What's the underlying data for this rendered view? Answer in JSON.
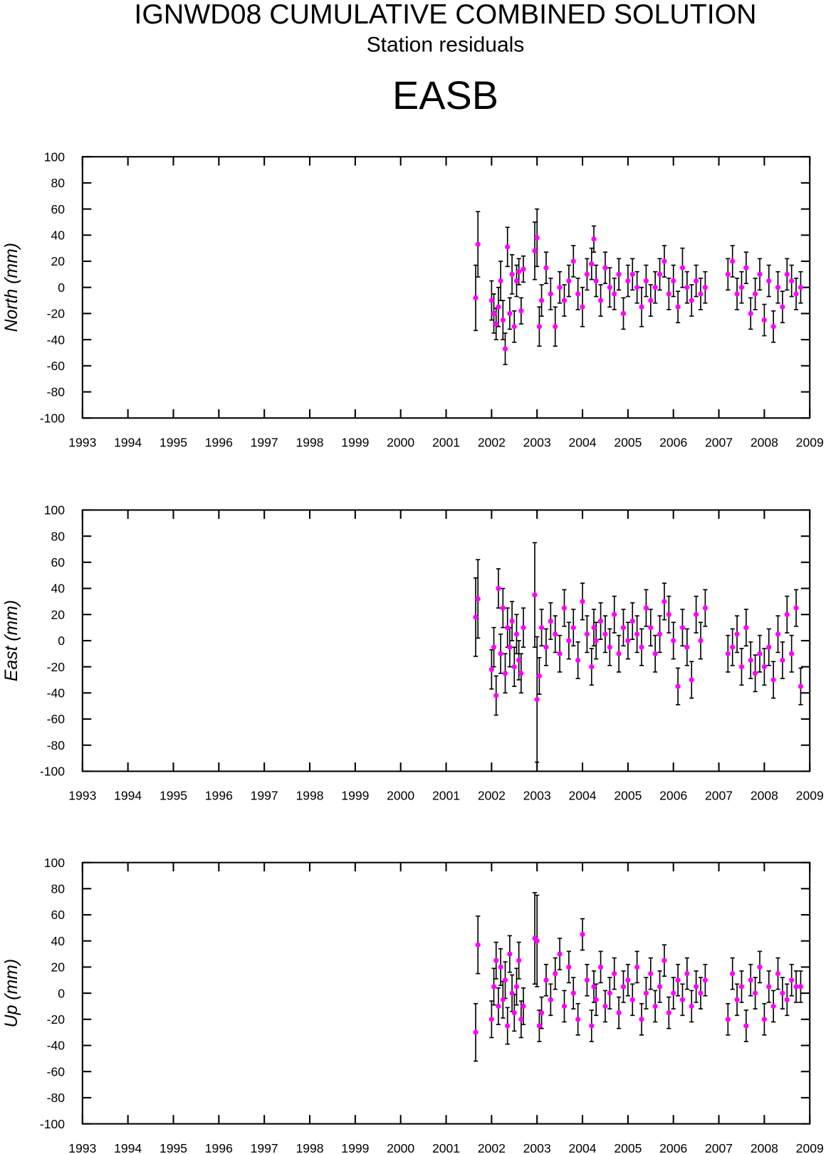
{
  "header": {
    "title": "IGNWD08 CUMULATIVE COMBINED SOLUTION",
    "subtitle": "Station residuals",
    "station": "EASB"
  },
  "chart_data": [
    {
      "type": "scatter",
      "ylabel": "North (mm)",
      "color": "#ff00ff",
      "error_color": "#000000",
      "xlim": [
        1993,
        2009
      ],
      "xticks": [
        1993,
        1994,
        1995,
        1996,
        1997,
        1998,
        1999,
        2000,
        2001,
        2002,
        2003,
        2004,
        2005,
        2006,
        2007,
        2008,
        2009
      ],
      "ylim": [
        -100,
        100
      ],
      "yticks": [
        -100,
        -80,
        -60,
        -40,
        -20,
        0,
        20,
        40,
        60,
        80,
        100
      ],
      "x": [
        2001.65,
        2001.7,
        2002.0,
        2002.05,
        2002.1,
        2002.15,
        2002.2,
        2002.25,
        2002.3,
        2002.35,
        2002.4,
        2002.45,
        2002.5,
        2002.55,
        2002.6,
        2002.65,
        2002.7,
        2002.95,
        2003.0,
        2003.05,
        2003.1,
        2003.2,
        2003.3,
        2003.4,
        2003.5,
        2003.6,
        2003.7,
        2003.8,
        2003.9,
        2004.0,
        2004.1,
        2004.2,
        2004.25,
        2004.3,
        2004.4,
        2004.5,
        2004.6,
        2004.7,
        2004.8,
        2004.9,
        2005.0,
        2005.1,
        2005.2,
        2005.3,
        2005.4,
        2005.5,
        2005.6,
        2005.7,
        2005.8,
        2005.9,
        2006.0,
        2006.1,
        2006.2,
        2006.3,
        2006.4,
        2006.5,
        2006.6,
        2006.7,
        2007.2,
        2007.3,
        2007.4,
        2007.5,
        2007.6,
        2007.7,
        2007.8,
        2007.9,
        2008.0,
        2008.1,
        2008.2,
        2008.3,
        2008.4,
        2008.5,
        2008.6,
        2008.7,
        2008.8
      ],
      "values": [
        -8,
        33,
        -10,
        -20,
        -28,
        -15,
        5,
        -25,
        -47,
        31,
        -20,
        10,
        -30,
        5,
        12,
        -18,
        14,
        28,
        38,
        -30,
        -10,
        15,
        -5,
        -30,
        0,
        -10,
        5,
        20,
        -5,
        -15,
        10,
        18,
        37,
        5,
        -10,
        15,
        0,
        -5,
        10,
        -20,
        5,
        10,
        0,
        -15,
        5,
        -10,
        0,
        10,
        20,
        -5,
        5,
        -15,
        15,
        0,
        -10,
        5,
        -5,
        0,
        10,
        20,
        -5,
        0,
        15,
        -20,
        -5,
        10,
        -25,
        5,
        -30,
        0,
        -15,
        10,
        5,
        -5,
        0
      ],
      "errors": [
        25,
        25,
        15,
        15,
        12,
        15,
        15,
        15,
        12,
        15,
        12,
        15,
        12,
        12,
        10,
        10,
        10,
        22,
        22,
        15,
        12,
        12,
        12,
        15,
        12,
        12,
        12,
        12,
        12,
        15,
        12,
        12,
        10,
        12,
        12,
        12,
        15,
        12,
        12,
        12,
        12,
        12,
        12,
        15,
        12,
        12,
        12,
        12,
        12,
        12,
        12,
        12,
        15,
        12,
        12,
        12,
        12,
        12,
        12,
        12,
        12,
        12,
        12,
        12,
        12,
        12,
        12,
        12,
        12,
        12,
        12,
        12,
        12,
        12,
        12
      ]
    },
    {
      "type": "scatter",
      "ylabel": "East (mm)",
      "color": "#ff00ff",
      "error_color": "#000000",
      "xlim": [
        1993,
        2009
      ],
      "xticks": [
        1993,
        1994,
        1995,
        1996,
        1997,
        1998,
        1999,
        2000,
        2001,
        2002,
        2003,
        2004,
        2005,
        2006,
        2007,
        2008,
        2009
      ],
      "ylim": [
        -100,
        100
      ],
      "yticks": [
        -100,
        -80,
        -60,
        -40,
        -20,
        0,
        20,
        40,
        60,
        80,
        100
      ],
      "x": [
        2001.65,
        2001.7,
        2002.0,
        2002.05,
        2002.1,
        2002.15,
        2002.2,
        2002.25,
        2002.3,
        2002.35,
        2002.4,
        2002.45,
        2002.5,
        2002.55,
        2002.6,
        2002.65,
        2002.7,
        2002.95,
        2003.0,
        2003.05,
        2003.1,
        2003.2,
        2003.3,
        2003.4,
        2003.5,
        2003.6,
        2003.7,
        2003.8,
        2003.9,
        2004.0,
        2004.1,
        2004.2,
        2004.25,
        2004.3,
        2004.4,
        2004.5,
        2004.6,
        2004.7,
        2004.8,
        2004.9,
        2005.0,
        2005.1,
        2005.2,
        2005.3,
        2005.4,
        2005.5,
        2005.6,
        2005.7,
        2005.8,
        2005.9,
        2006.0,
        2006.1,
        2006.2,
        2006.3,
        2006.4,
        2006.5,
        2006.6,
        2006.7,
        2007.2,
        2007.3,
        2007.4,
        2007.5,
        2007.6,
        2007.7,
        2007.8,
        2007.9,
        2008.0,
        2008.1,
        2008.2,
        2008.3,
        2008.4,
        2008.5,
        2008.6,
        2008.7,
        2008.8
      ],
      "values": [
        18,
        32,
        -22,
        -5,
        -42,
        40,
        -10,
        25,
        -25,
        10,
        -5,
        15,
        -20,
        5,
        -15,
        -25,
        10,
        35,
        -45,
        -27,
        10,
        -5,
        15,
        5,
        -10,
        25,
        0,
        10,
        -15,
        30,
        5,
        -20,
        10,
        0,
        15,
        5,
        -5,
        20,
        -10,
        10,
        0,
        15,
        5,
        -5,
        25,
        10,
        -10,
        5,
        30,
        20,
        0,
        -35,
        10,
        -5,
        -30,
        20,
        0,
        25,
        -10,
        -5,
        5,
        -20,
        10,
        -15,
        -25,
        -10,
        -20,
        -5,
        -30,
        5,
        -15,
        20,
        -10,
        25,
        -35
      ],
      "errors": [
        30,
        30,
        15,
        15,
        15,
        15,
        15,
        15,
        15,
        15,
        15,
        15,
        15,
        15,
        15,
        15,
        15,
        40,
        48,
        14,
        14,
        14,
        14,
        14,
        14,
        14,
        14,
        14,
        14,
        14,
        14,
        14,
        14,
        14,
        14,
        14,
        14,
        14,
        14,
        14,
        14,
        14,
        14,
        14,
        14,
        14,
        14,
        14,
        14,
        14,
        14,
        14,
        14,
        14,
        14,
        14,
        14,
        14,
        14,
        14,
        14,
        14,
        14,
        14,
        14,
        14,
        14,
        14,
        14,
        14,
        14,
        14,
        14,
        14,
        14
      ]
    },
    {
      "type": "scatter",
      "ylabel": "Up (mm)",
      "color": "#ff00ff",
      "error_color": "#000000",
      "xlim": [
        1993,
        2009
      ],
      "xticks": [
        1993,
        1994,
        1995,
        1996,
        1997,
        1998,
        1999,
        2000,
        2001,
        2002,
        2003,
        2004,
        2005,
        2006,
        2007,
        2008,
        2009
      ],
      "ylim": [
        -100,
        100
      ],
      "yticks": [
        -100,
        -80,
        -60,
        -40,
        -20,
        0,
        20,
        40,
        60,
        80,
        100
      ],
      "x": [
        2001.65,
        2001.7,
        2002.0,
        2002.05,
        2002.1,
        2002.15,
        2002.2,
        2002.25,
        2002.3,
        2002.35,
        2002.4,
        2002.45,
        2002.5,
        2002.55,
        2002.6,
        2002.65,
        2002.7,
        2002.95,
        2003.0,
        2003.05,
        2003.1,
        2003.2,
        2003.3,
        2003.4,
        2003.5,
        2003.6,
        2003.7,
        2003.8,
        2003.9,
        2004.0,
        2004.1,
        2004.2,
        2004.25,
        2004.3,
        2004.4,
        2004.5,
        2004.6,
        2004.7,
        2004.8,
        2004.9,
        2005.0,
        2005.1,
        2005.2,
        2005.3,
        2005.4,
        2005.5,
        2005.6,
        2005.7,
        2005.8,
        2005.9,
        2006.0,
        2006.1,
        2006.2,
        2006.3,
        2006.4,
        2006.5,
        2006.6,
        2006.7,
        2007.2,
        2007.3,
        2007.4,
        2007.5,
        2007.6,
        2007.7,
        2007.8,
        2007.9,
        2008.0,
        2008.1,
        2008.2,
        2008.3,
        2008.4,
        2008.5,
        2008.6,
        2008.7,
        2008.8
      ],
      "values": [
        -30,
        37,
        -20,
        5,
        25,
        -10,
        20,
        -5,
        10,
        -25,
        30,
        0,
        -15,
        5,
        25,
        -20,
        -10,
        42,
        40,
        -25,
        -15,
        10,
        -5,
        15,
        30,
        -10,
        20,
        0,
        -20,
        45,
        10,
        -25,
        5,
        -5,
        20,
        -10,
        0,
        15,
        -15,
        5,
        10,
        -5,
        20,
        -20,
        0,
        15,
        -10,
        5,
        25,
        -15,
        0,
        10,
        -5,
        15,
        -10,
        5,
        0,
        10,
        -20,
        15,
        -5,
        5,
        -25,
        10,
        0,
        20,
        -20,
        5,
        -10,
        15,
        0,
        -5,
        10,
        5,
        5
      ],
      "errors": [
        22,
        22,
        14,
        14,
        14,
        14,
        14,
        14,
        14,
        14,
        14,
        14,
        14,
        14,
        14,
        14,
        14,
        35,
        35,
        12,
        12,
        12,
        12,
        12,
        12,
        12,
        12,
        12,
        12,
        12,
        12,
        12,
        12,
        12,
        12,
        12,
        12,
        12,
        12,
        12,
        12,
        12,
        12,
        12,
        12,
        12,
        12,
        12,
        12,
        12,
        12,
        12,
        12,
        12,
        12,
        12,
        12,
        12,
        12,
        12,
        12,
        12,
        12,
        12,
        12,
        12,
        12,
        12,
        12,
        12,
        12,
        12,
        12,
        12,
        12
      ]
    }
  ]
}
